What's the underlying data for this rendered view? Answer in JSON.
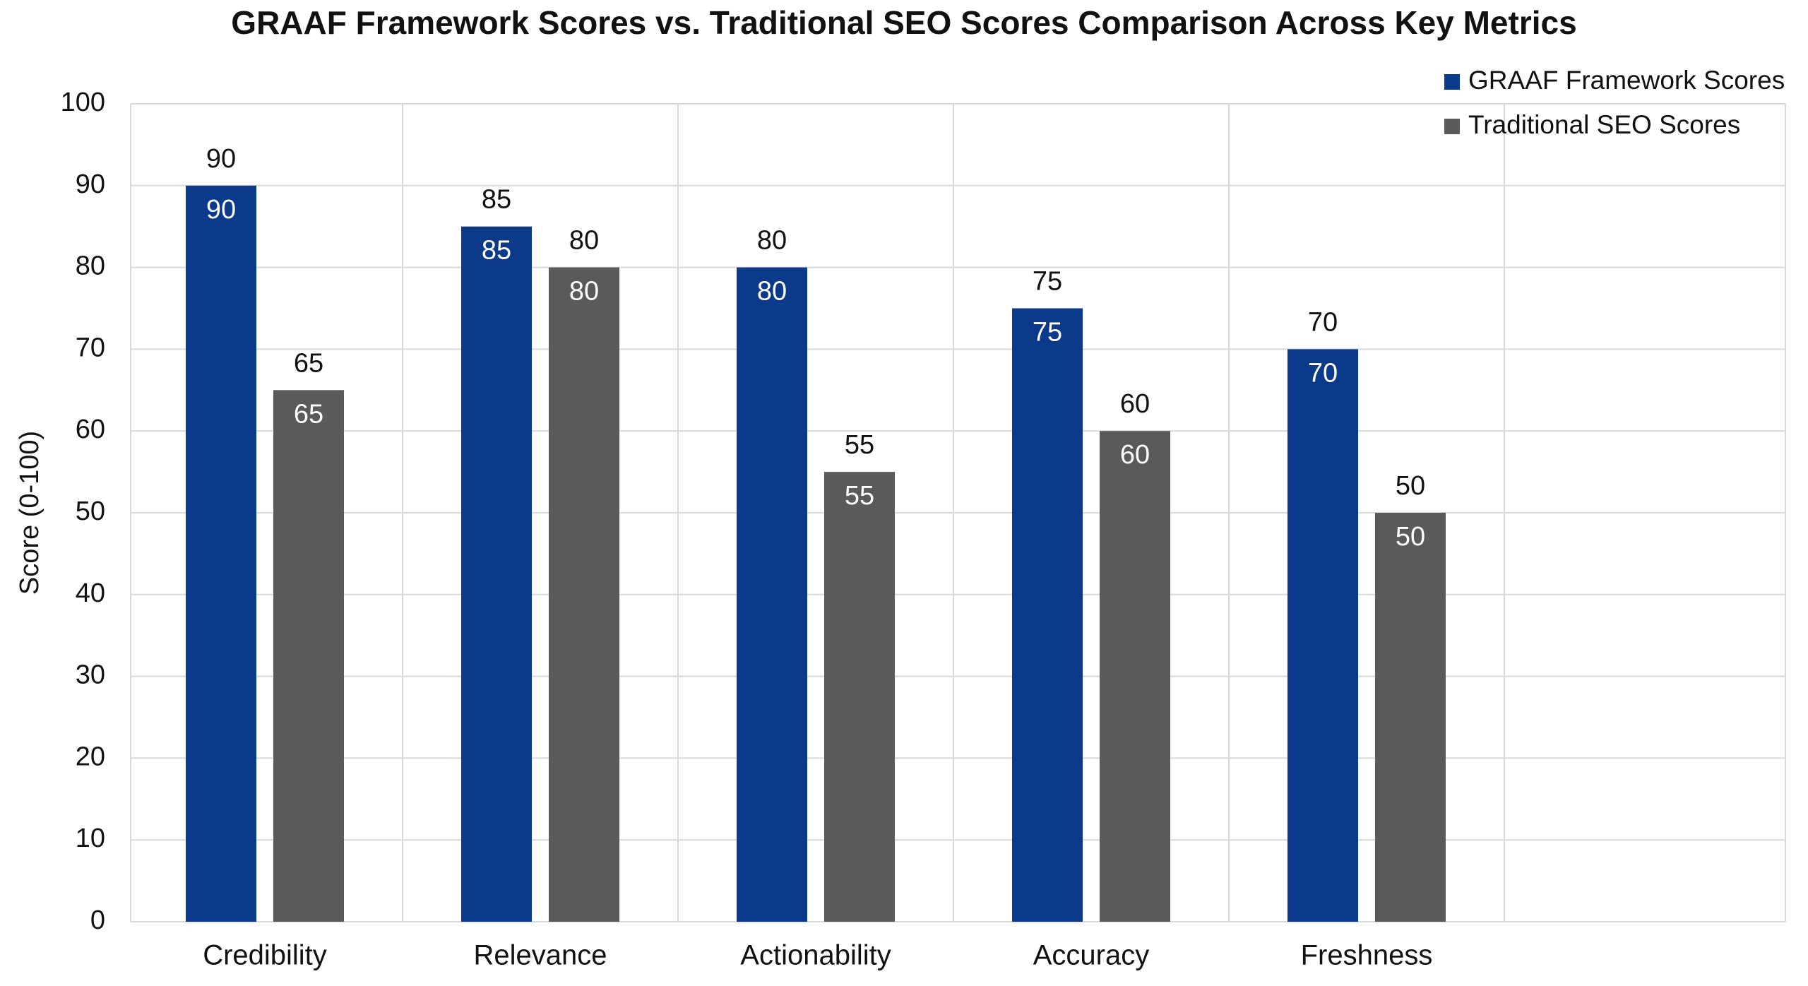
{
  "chart_data": {
    "type": "bar",
    "title": "GRAAF Framework Scores vs. Traditional SEO Scores Comparison Across Key Metrics",
    "y_label": "Score (0-100)",
    "categories": [
      "Credibility",
      "Relevance",
      "Actionability",
      "Accuracy",
      "Freshness"
    ],
    "series": [
      {
        "name": "GRAAF Framework Scores",
        "color": "#0b3a8b",
        "values": [
          90,
          85,
          80,
          75,
          70
        ]
      },
      {
        "name": "Traditional SEO Scores",
        "color": "#5a5a5a",
        "values": [
          65,
          80,
          55,
          60,
          50
        ]
      }
    ],
    "ylim": [
      0,
      100
    ],
    "yticks": [
      0,
      10,
      20,
      30,
      40,
      50,
      60,
      70,
      80,
      90,
      100
    ],
    "grid": true,
    "legend": "top-right"
  }
}
